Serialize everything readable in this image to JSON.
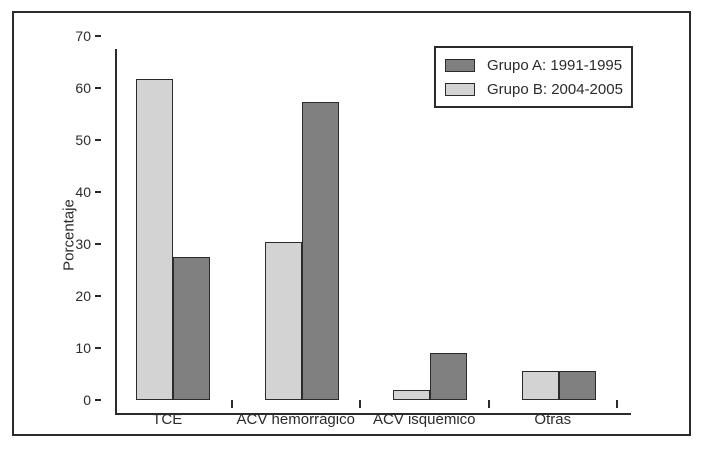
{
  "figure": {
    "background": "#ffffff",
    "frame_border_color": "#2b2b2b",
    "text_color": "#2b2b2b"
  },
  "chart_data": {
    "type": "bar",
    "title": "",
    "xlabel": "",
    "ylabel": "Porcentaje",
    "ylim": [
      0,
      70
    ],
    "yticks": [
      0,
      10,
      20,
      30,
      40,
      50,
      60,
      70
    ],
    "grid": false,
    "legend_position": "top-right",
    "categories": [
      "TCE",
      "ACV hemorrágico",
      "ACV isquémico",
      "Otras"
    ],
    "series": [
      {
        "name": "Grupo A: 1991-1995",
        "color": "#808080",
        "values": [
          27.5,
          57.3,
          9.0,
          5.5
        ]
      },
      {
        "name": "Grupo B: 2004-2005",
        "color": "#d3d3d3",
        "values": [
          61.8,
          30.4,
          2.0,
          5.5
        ]
      }
    ],
    "bar_draw_order": [
      1,
      0
    ],
    "bar_outline_color": "#2b2b2b"
  }
}
